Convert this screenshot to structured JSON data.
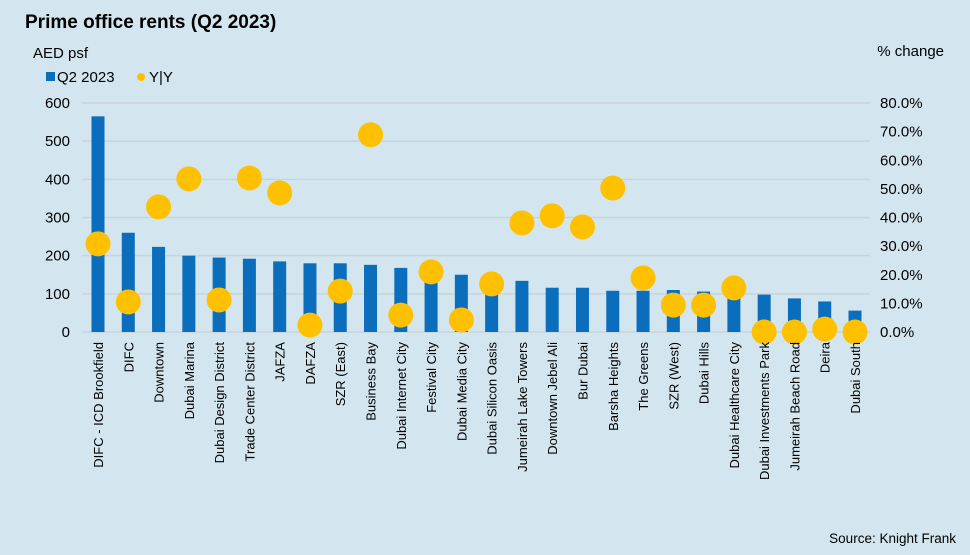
{
  "chart_data": {
    "type": "bar",
    "title": "Prime office rents (Q2 2023)",
    "ylabel": "AED psf",
    "y2label": "% change",
    "ylim": [
      0,
      600
    ],
    "yticks": [
      "0",
      "100",
      "200",
      "300",
      "400",
      "500",
      "600"
    ],
    "ytick_values": [
      0,
      100,
      200,
      300,
      400,
      500,
      600
    ],
    "y2lim": [
      0,
      80
    ],
    "y2ticks": [
      "0.0%",
      "10.0%",
      "20.0%",
      "30.0%",
      "40.0%",
      "50.0%",
      "60.0%",
      "70.0%",
      "80.0%"
    ],
    "y2tick_values": [
      0,
      10,
      20,
      30,
      40,
      50,
      60,
      70,
      80
    ],
    "grid": true,
    "legend_position": "top-left",
    "categories": [
      "DIFC - ICD Brookfield",
      "DIFC",
      "Downtown",
      "Dubai Marina",
      "Dubai Design District",
      "Trade Center District",
      "JAFZA",
      "DAFZA",
      "SZR (East)",
      "Business Bay",
      "Dubai Internet City",
      "Festival City",
      "Dubai Media City",
      "Dubai Silicon Oasis",
      "Jumeirah Lake Towers",
      "Downtown Jebel Ali",
      "Bur Dubai",
      "Barsha Heights",
      "The Greens",
      "SZR (West)",
      "Dubai Hills",
      "Dubai Healthcare City",
      "Dubai Investments Park",
      "Jumeirah Beach Road",
      "Deira",
      "Dubai South"
    ],
    "series": [
      {
        "name": "Q2 2023",
        "kind": "bar",
        "axis": "left",
        "color": "#0a6ebd",
        "values": [
          565,
          260,
          223,
          200,
          195,
          192,
          185,
          180,
          180,
          176,
          168,
          145,
          150,
          130,
          134,
          116,
          116,
          108,
          108,
          110,
          106,
          100,
          98,
          88,
          80,
          56
        ]
      },
      {
        "name": "Y|Y",
        "kind": "scatter",
        "axis": "right",
        "color": "#ffc000",
        "values": [
          30.8,
          10.5,
          43.7,
          53.5,
          11.2,
          53.8,
          48.6,
          2.4,
          14.3,
          68.9,
          5.9,
          21.0,
          4.2,
          16.8,
          38.1,
          40.6,
          36.7,
          50.3,
          18.9,
          9.4,
          9.4,
          15.4,
          0.0,
          0.0,
          1.0,
          0.0
        ]
      }
    ],
    "source": "Source: Knight Frank"
  }
}
